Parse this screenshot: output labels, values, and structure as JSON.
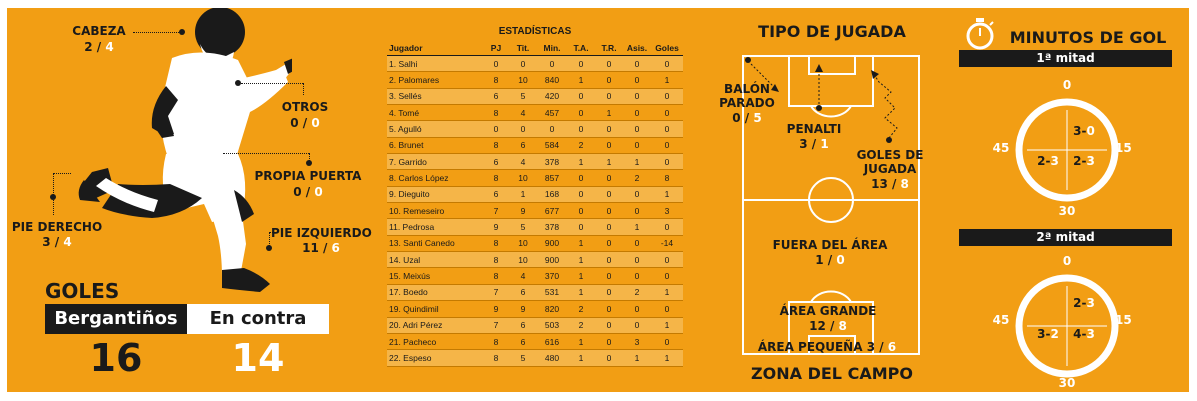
{
  "body_parts": {
    "cabeza": {
      "label": "CABEZA",
      "a": "2",
      "b": "4"
    },
    "otros": {
      "label": "OTROS",
      "a": "0",
      "b": "0"
    },
    "propia_puerta": {
      "label": "PROPIA PUERTA",
      "a": "0",
      "b": "0"
    },
    "pie_izquierdo": {
      "label": "PIE IZQUIERDO",
      "a": "11",
      "b": "6"
    },
    "pie_derecho": {
      "label": "PIE DERECHO",
      "a": "3",
      "b": "4"
    }
  },
  "goals": {
    "title": "GOLES",
    "for_label": "Bergantiños",
    "against_label": "En contra",
    "for_value": "16",
    "against_value": "14"
  },
  "stats": {
    "title": "ESTADÍSTICAS",
    "headers": [
      "Jugador",
      "PJ",
      "Tit.",
      "Min.",
      "T.A.",
      "T.R.",
      "Asis.",
      "Goles"
    ],
    "rows": [
      [
        "1. Salhi",
        "0",
        "0",
        "0",
        "0",
        "0",
        "0",
        "0"
      ],
      [
        "2. Palomares",
        "8",
        "10",
        "840",
        "1",
        "0",
        "0",
        "1"
      ],
      [
        "3. Sellés",
        "6",
        "5",
        "420",
        "0",
        "0",
        "0",
        "0"
      ],
      [
        "4. Tomé",
        "8",
        "4",
        "457",
        "0",
        "1",
        "0",
        "0"
      ],
      [
        "5. Agulló",
        "0",
        "0",
        "0",
        "0",
        "0",
        "0",
        "0"
      ],
      [
        "6. Brunet",
        "8",
        "6",
        "584",
        "2",
        "0",
        "0",
        "0"
      ],
      [
        "7. Garrido",
        "6",
        "4",
        "378",
        "1",
        "1",
        "1",
        "0"
      ],
      [
        "8. Carlos López",
        "8",
        "10",
        "857",
        "0",
        "0",
        "2",
        "8"
      ],
      [
        "9. Dieguito",
        "6",
        "1",
        "168",
        "0",
        "0",
        "0",
        "1"
      ],
      [
        "10. Remeseiro",
        "7",
        "9",
        "677",
        "0",
        "0",
        "0",
        "3"
      ],
      [
        "11. Pedrosa",
        "9",
        "5",
        "378",
        "0",
        "0",
        "1",
        "0"
      ],
      [
        "13. Santi Canedo",
        "8",
        "10",
        "900",
        "1",
        "0",
        "0",
        "-14"
      ],
      [
        "14. Uzal",
        "8",
        "10",
        "900",
        "1",
        "0",
        "0",
        "0"
      ],
      [
        "15. Meixús",
        "8",
        "4",
        "370",
        "1",
        "0",
        "0",
        "0"
      ],
      [
        "17. Boedo",
        "7",
        "6",
        "531",
        "1",
        "0",
        "2",
        "1"
      ],
      [
        "19. Quindimil",
        "9",
        "9",
        "820",
        "2",
        "0",
        "0",
        "0"
      ],
      [
        "20. Adri Pérez",
        "7",
        "6",
        "503",
        "2",
        "0",
        "0",
        "1"
      ],
      [
        "21. Pacheco",
        "8",
        "6",
        "616",
        "1",
        "0",
        "3",
        "0"
      ],
      [
        "22. Espeso",
        "8",
        "5",
        "480",
        "1",
        "0",
        "1",
        "1"
      ]
    ]
  },
  "play_type": {
    "title": "TIPO DE JUGADA",
    "balon_parado": {
      "label1": "BALÓN",
      "label2": "PARADO",
      "a": "0",
      "b": "5"
    },
    "penalti": {
      "label": "PENALTI",
      "a": "3",
      "b": "1"
    },
    "goles_jugada": {
      "label1": "GOLES DE",
      "label2": "JUGADA",
      "a": "13",
      "b": "8"
    }
  },
  "zone": {
    "title": "ZONA DEL CAMPO",
    "fuera": {
      "label": "FUERA DEL ÁREA",
      "a": "1",
      "b": "0"
    },
    "area_grande": {
      "label": "ÁREA GRANDE",
      "a": "12",
      "b": "8"
    },
    "area_pequena": {
      "label": "ÁREA PEQUEÑA",
      "a": "3",
      "b": "6"
    }
  },
  "minutes": {
    "title": "MINUTOS DE GOL",
    "first_half": {
      "label": "1ª mitad",
      "q1": {
        "a": "3",
        "b": "0"
      },
      "q2": {
        "a": "2",
        "b": "3"
      },
      "q3": {
        "a": "2",
        "b": "3"
      }
    },
    "second_half": {
      "label": "2ª mitad",
      "q1": {
        "a": "2",
        "b": "3"
      },
      "q2": {
        "a": "4",
        "b": "3"
      },
      "q3": {
        "a": "3",
        "b": "2"
      }
    },
    "ticks": {
      "t0": "0",
      "t15": "15",
      "t30": "30",
      "t45": "45"
    }
  },
  "colors": {
    "background": "#F29E14",
    "dark": "#1a1a1a",
    "white": "#ffffff"
  }
}
